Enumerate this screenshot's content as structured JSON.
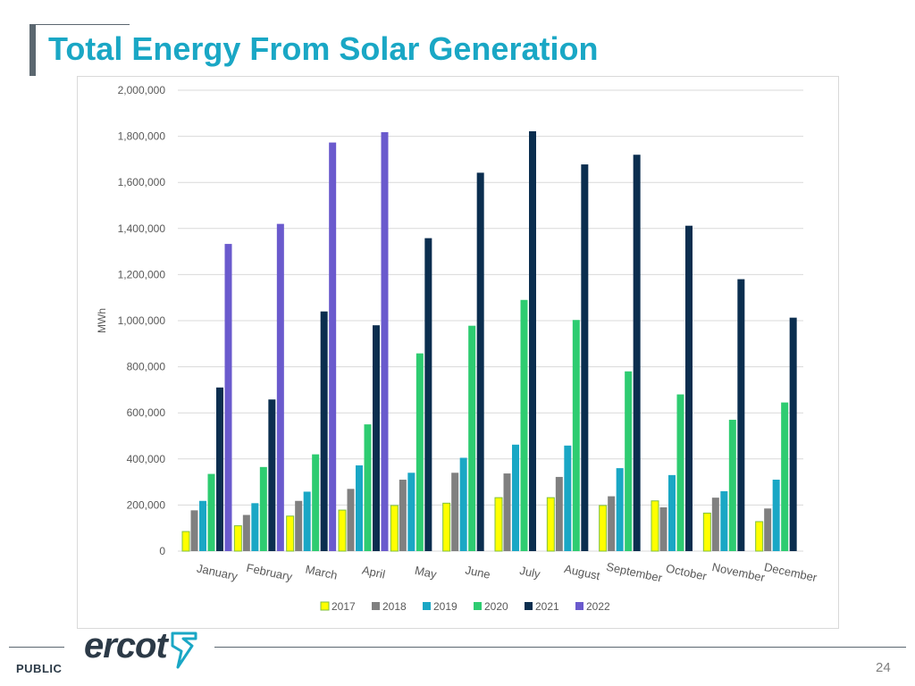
{
  "slide": {
    "title": "Total Energy From Solar Generation",
    "footer_label": "PUBLIC",
    "page_number": "24",
    "logo_text": "ercot"
  },
  "colors": {
    "title": "#1aa7c5",
    "accent_bar": "#5b6770",
    "gridline": "#d9d9d9",
    "axis_text": "#595959"
  },
  "chart_data": {
    "type": "bar",
    "title": "",
    "xlabel": "",
    "ylabel": "MWh",
    "ylim": [
      0,
      2000000
    ],
    "yticks": [
      0,
      200000,
      400000,
      600000,
      800000,
      1000000,
      1200000,
      1400000,
      1600000,
      1800000,
      2000000
    ],
    "ytick_labels": [
      "0",
      "200,000",
      "400,000",
      "600,000",
      "800,000",
      "1,000,000",
      "1,200,000",
      "1,400,000",
      "1,600,000",
      "1,800,000",
      "2,000,000"
    ],
    "categories": [
      "January",
      "February",
      "March",
      "April",
      "May",
      "June",
      "July",
      "August",
      "September",
      "October",
      "November",
      "December"
    ],
    "legend_position": "bottom",
    "grid": true,
    "series": [
      {
        "name": "2017",
        "color": "#ffff00",
        "outline": "#7fbf3f",
        "values": [
          85000,
          110000,
          152000,
          178000,
          198000,
          208000,
          232000,
          232000,
          198000,
          218000,
          165000,
          128000
        ]
      },
      {
        "name": "2018",
        "color": "#808080",
        "values": [
          177000,
          157000,
          218000,
          270000,
          310000,
          340000,
          337000,
          322000,
          238000,
          190000,
          232000,
          185000
        ]
      },
      {
        "name": "2019",
        "color": "#1aa7c5",
        "values": [
          218000,
          208000,
          258000,
          372000,
          340000,
          405000,
          462000,
          458000,
          360000,
          330000,
          260000,
          310000
        ]
      },
      {
        "name": "2020",
        "color": "#2ecc71",
        "values": [
          335000,
          365000,
          420000,
          550000,
          858000,
          978000,
          1090000,
          1003000,
          780000,
          680000,
          570000,
          645000
        ]
      },
      {
        "name": "2021",
        "color": "#0b2e4f",
        "values": [
          710000,
          658000,
          1040000,
          980000,
          1358000,
          1642000,
          1822000,
          1678000,
          1720000,
          1412000,
          1180000,
          1013000
        ]
      },
      {
        "name": "2022",
        "color": "#6a5acd",
        "values": [
          1333000,
          1420000,
          1773000,
          1818000,
          null,
          null,
          null,
          null,
          null,
          null,
          null,
          null
        ]
      }
    ]
  }
}
